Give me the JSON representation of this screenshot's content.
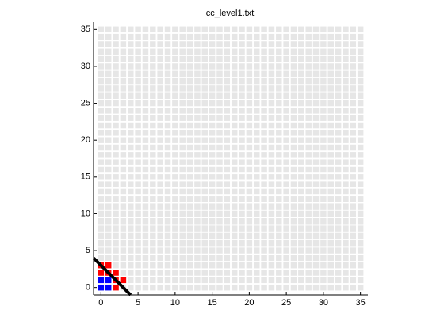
{
  "chart_data": {
    "type": "grid",
    "title": "cc_level1.txt",
    "xlim": [
      -1,
      36
    ],
    "ylim": [
      -1,
      36
    ],
    "xticks": [
      0,
      5,
      10,
      15,
      20,
      25,
      30,
      35
    ],
    "yticks": [
      0,
      5,
      10,
      15,
      20,
      25,
      30,
      35
    ],
    "cell_color": "#e6e6e6",
    "series": [
      {
        "color": "#ff0000",
        "x": [
          0,
          1,
          0,
          1,
          2,
          2,
          3,
          2
        ],
        "y": [
          3,
          3,
          2,
          2,
          2,
          1,
          1,
          0
        ]
      },
      {
        "color": "#0000ff",
        "x": [
          0,
          1,
          0,
          1
        ],
        "y": [
          1,
          1,
          0,
          0
        ]
      }
    ],
    "line": {
      "color": "#000000",
      "x": [
        -1,
        4
      ],
      "y": [
        4,
        -1
      ]
    }
  }
}
